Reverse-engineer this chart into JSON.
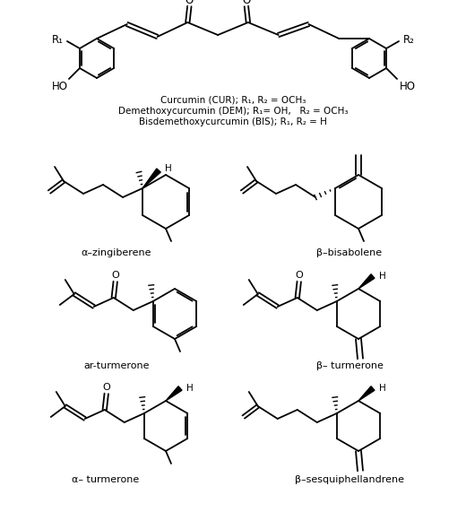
{
  "background_color": "#ffffff",
  "labels": {
    "alpha_zingiberene": "α–zingiberene",
    "beta_bisabolene": "β–bisabolene",
    "ar_turmerone": "ar-turmerone",
    "beta_turmerone": "β– turmerone",
    "alpha_turmerone": "α– turmerone",
    "beta_sesquiphellandrene": "β–sesquiphellandrene"
  },
  "figsize": [
    5.2,
    5.71
  ],
  "dpi": 100
}
